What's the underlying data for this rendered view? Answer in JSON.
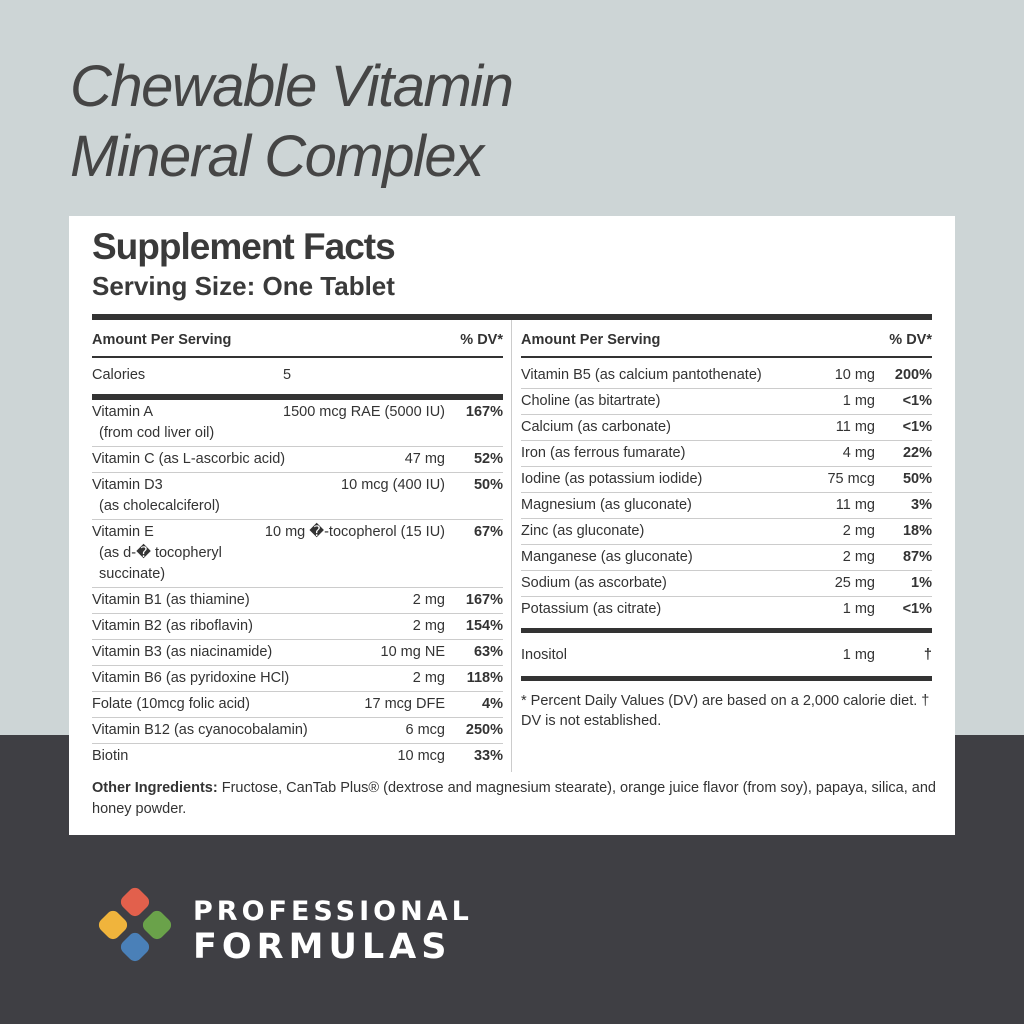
{
  "title": [
    "Chewable Vitamin",
    "Mineral Complex"
  ],
  "facts": {
    "heading": "Supplement Facts",
    "serving_size": "Serving Size: One Tablet",
    "left": {
      "header": {
        "label": "Amount Per Serving",
        "dv": "% DV*"
      },
      "calories": {
        "name": "Calories",
        "amount": "5"
      },
      "rows": [
        {
          "name": "Vitamin A",
          "sub": "(from cod liver oil)",
          "amount": "1500 mcg RAE (5000 IU)",
          "dv": "167%"
        },
        {
          "name": "Vitamin C (as L-ascorbic acid)",
          "amount": "47 mg",
          "dv": "52%"
        },
        {
          "name": "Vitamin D3",
          "sub": "(as cholecalciferol)",
          "amount": "10 mcg (400 IU)",
          "dv": "50%"
        },
        {
          "name": "Vitamin E",
          "sub": "(as d-� tocopheryl succinate)",
          "amount": "10 mg �-tocopherol (15 IU)",
          "dv": "67%"
        },
        {
          "name": "Vitamin B1 (as thiamine)",
          "amount": "2 mg",
          "dv": "167%"
        },
        {
          "name": "Vitamin B2 (as riboflavin)",
          "amount": "2 mg",
          "dv": "154%"
        },
        {
          "name": "Vitamin B3 (as niacinamide)",
          "amount": "10 mg NE",
          "dv": "63%"
        },
        {
          "name": "Vitamin B6 (as pyridoxine HCl)",
          "amount": "2 mg",
          "dv": "118%"
        },
        {
          "name": "Folate (10mcg folic acid)",
          "amount": "17 mcg DFE",
          "dv": "4%"
        },
        {
          "name": "Vitamin B12 (as cyanocobalamin)",
          "amount": "6 mcg",
          "dv": "250%"
        },
        {
          "name": "Biotin",
          "amount": "10 mcg",
          "dv": "33%"
        }
      ]
    },
    "right": {
      "header": {
        "label": "Amount Per Serving",
        "dv": "% DV*"
      },
      "rows": [
        {
          "name": "Vitamin B5 (as calcium pantothenate)",
          "amount": "10 mg",
          "dv": "200%"
        },
        {
          "name": "Choline (as bitartrate)",
          "amount": "1 mg",
          "dv": "<1%"
        },
        {
          "name": "Calcium (as carbonate)",
          "amount": "11 mg",
          "dv": "<1%"
        },
        {
          "name": "Iron (as ferrous fumarate)",
          "amount": "4 mg",
          "dv": "22%"
        },
        {
          "name": "Iodine (as potassium iodide)",
          "amount": "75 mcg",
          "dv": "50%"
        },
        {
          "name": "Magnesium (as gluconate)",
          "amount": "11 mg",
          "dv": "3%"
        },
        {
          "name": "Zinc (as gluconate)",
          "amount": "2 mg",
          "dv": "18%"
        },
        {
          "name": "Manganese (as gluconate)",
          "amount": "2 mg",
          "dv": "87%"
        },
        {
          "name": "Sodium (as ascorbate)",
          "amount": "25 mg",
          "dv": "1%"
        },
        {
          "name": "Potassium (as citrate)",
          "amount": "1 mg",
          "dv": "<1%"
        }
      ],
      "extra": {
        "name": "Inositol",
        "amount": "1 mg",
        "dv": "†"
      },
      "footnote": "* Percent Daily Values (DV) are based on a 2,000 calorie diet. † DV is not established."
    },
    "other_ingredients": {
      "label": "Other Ingredients:",
      "text": "Fructose, CanTab Plus® (dextrose and magnesium stearate), orange juice flavor (from soy), papaya, silica, and honey powder."
    }
  },
  "brand": [
    "PROFESSIONAL",
    "FORMULAS"
  ]
}
